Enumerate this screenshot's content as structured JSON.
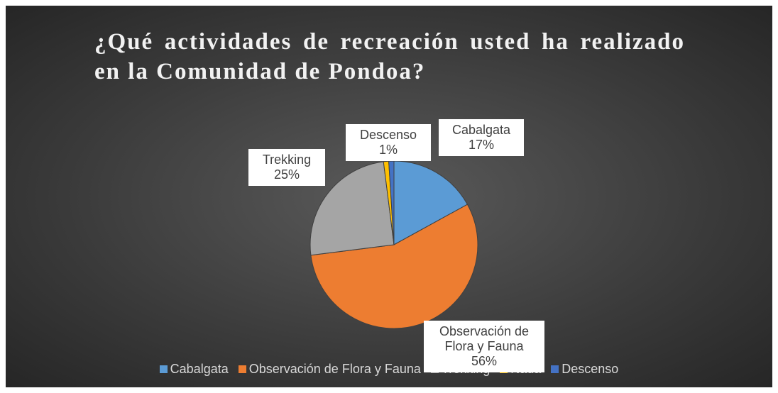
{
  "chart_data": {
    "type": "pie",
    "title": "¿Qué actividades de recreación usted ha realizado en la Comunidad de Pondoa?",
    "categories": [
      "Cabalgata",
      "Observación de Flora y Fauna",
      "Trekking",
      "Nada",
      "Descenso"
    ],
    "values": [
      17,
      56,
      25,
      1,
      1
    ],
    "value_labels": [
      "17%",
      "56%",
      "25%",
      null,
      "1%"
    ],
    "colors": [
      "#5b9bd5",
      "#ed7d31",
      "#a5a5a5",
      "#ffc000",
      "#4472c4"
    ],
    "legend": "bottom"
  }
}
